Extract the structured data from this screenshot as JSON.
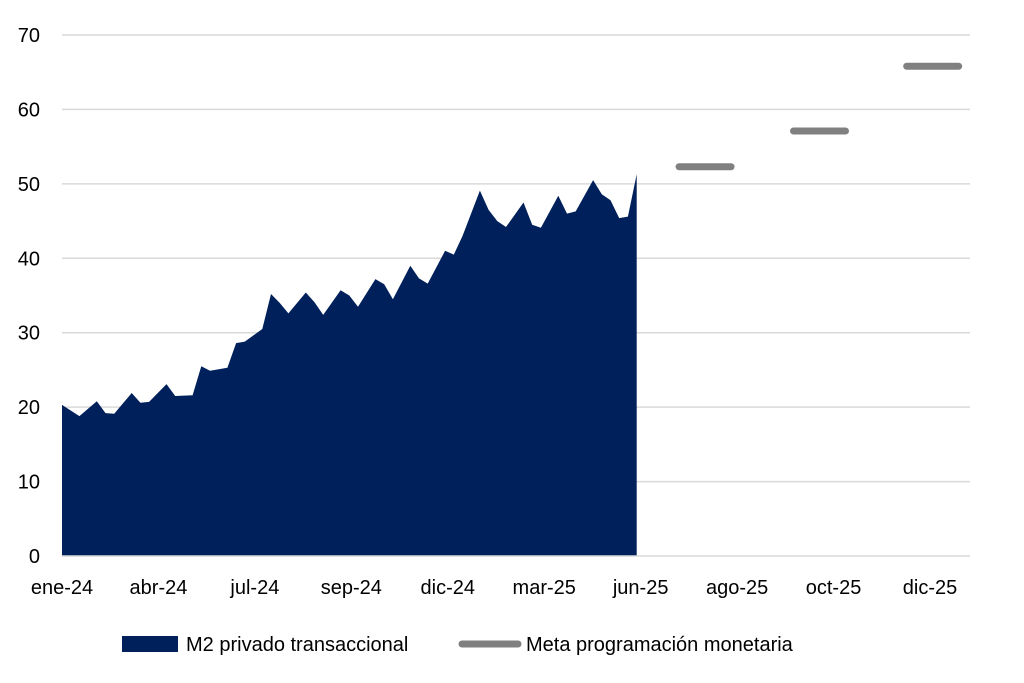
{
  "chart_data": {
    "type": "area",
    "title": "",
    "xlabel": "",
    "ylabel": "",
    "ylim": [
      0,
      70
    ],
    "yticks": [
      "0",
      "10",
      "20",
      "30",
      "40",
      "50",
      "60",
      "70"
    ],
    "xticks": [
      "ene-24",
      "abr-24",
      "jul-24",
      "sep-24",
      "dic-24",
      "mar-25",
      "jun-25",
      "ago-25",
      "oct-25",
      "dic-25"
    ],
    "grid": true,
    "legend_position": "bottom",
    "colors": {
      "area": "#00205B",
      "target": "#808080",
      "grid": "#d9d9d9"
    },
    "series": [
      {
        "name": "M2 privado transaccional",
        "type": "area",
        "x": [
          "2024-01-01",
          "2024-01-15",
          "2024-01-29",
          "2024-02-05",
          "2024-02-12",
          "2024-02-26",
          "2024-03-04",
          "2024-03-11",
          "2024-03-25",
          "2024-04-01",
          "2024-04-15",
          "2024-04-22",
          "2024-04-29",
          "2024-05-13",
          "2024-05-20",
          "2024-05-27",
          "2024-06-10",
          "2024-06-17",
          "2024-06-24",
          "2024-07-01",
          "2024-07-15",
          "2024-07-22",
          "2024-07-29",
          "2024-08-12",
          "2024-08-19",
          "2024-08-26",
          "2024-09-09",
          "2024-09-16",
          "2024-09-23",
          "2024-10-07",
          "2024-10-14",
          "2024-10-21",
          "2024-11-04",
          "2024-11-11",
          "2024-11-18",
          "2024-12-02",
          "2024-12-09",
          "2024-12-16",
          "2024-12-23",
          "2025-01-06",
          "2025-01-13",
          "2025-01-20",
          "2025-02-03",
          "2025-02-10",
          "2025-02-17",
          "2025-03-03",
          "2025-03-10",
          "2025-03-17",
          "2025-03-24",
          "2025-03-31",
          "2025-04-07"
        ],
        "values": [
          20.3,
          18.8,
          20.8,
          19.2,
          19.1,
          21.9,
          20.6,
          20.7,
          23.1,
          21.5,
          21.6,
          25.5,
          24.9,
          25.3,
          28.6,
          28.8,
          30.5,
          35.2,
          34.0,
          32.6,
          35.4,
          34.1,
          32.4,
          35.7,
          35.0,
          33.5,
          37.2,
          36.5,
          34.5,
          39.0,
          37.3,
          36.6,
          41.0,
          40.5,
          43.0,
          49.1,
          46.5,
          45.0,
          44.2,
          47.5,
          44.5,
          44.1,
          48.4,
          46.0,
          46.3,
          50.5,
          48.6,
          47.8,
          45.4,
          45.6,
          51.3
        ]
      },
      {
        "name": "Meta programación monetaria",
        "type": "target",
        "points": [
          {
            "x": "2025-06-01",
            "value": 52.3
          },
          {
            "x": "2025-09-01",
            "value": 57.1
          },
          {
            "x": "2025-12-01",
            "value": 65.8
          }
        ]
      }
    ]
  }
}
